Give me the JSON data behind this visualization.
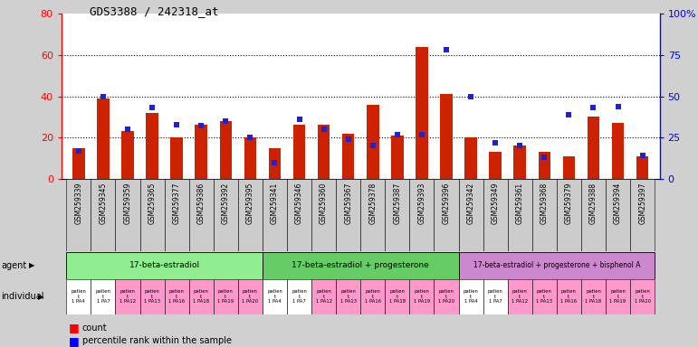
{
  "title": "GDS3388 / 242318_at",
  "gsm_ids": [
    "GSM259339",
    "GSM259345",
    "GSM259359",
    "GSM259365",
    "GSM259377",
    "GSM259386",
    "GSM259392",
    "GSM259395",
    "GSM259341",
    "GSM259346",
    "GSM259360",
    "GSM259367",
    "GSM259378",
    "GSM259387",
    "GSM259393",
    "GSM259396",
    "GSM259342",
    "GSM259349",
    "GSM259361",
    "GSM259368",
    "GSM259379",
    "GSM259388",
    "GSM259394",
    "GSM259397"
  ],
  "count_values": [
    15,
    39,
    23,
    32,
    20,
    26,
    28,
    20,
    15,
    26,
    26,
    22,
    36,
    21,
    64,
    41,
    20,
    13,
    16,
    13,
    11,
    30,
    27,
    11
  ],
  "percentile_values": [
    17,
    50,
    30,
    43,
    33,
    32,
    35,
    25,
    10,
    36,
    30,
    24,
    20,
    27,
    27,
    78,
    50,
    22,
    20,
    13,
    39,
    43,
    44,
    14
  ],
  "agents": [
    {
      "label": "17-beta-estradiol",
      "start": 0,
      "end": 8,
      "color": "#90EE90"
    },
    {
      "label": "17-beta-estradiol + progesterone",
      "start": 8,
      "end": 16,
      "color": "#66CC66"
    },
    {
      "label": "17-beta-estradiol + progesterone + bisphenol A",
      "start": 16,
      "end": 24,
      "color": "#CC88CC"
    }
  ],
  "ind_labels": [
    "patien\nt\n1 PA4",
    "patien\nt\n1 PA7",
    "patien\nt\n1 PA12",
    "patien\nt\n1 PA13",
    "patien\nt\n1 PA16",
    "patien\nt\n1 PA18",
    "patien\nt\n1 PA19",
    "patien\nt\n1 PA20",
    "patien\nt\n1 PA4",
    "patien\nt\n1 PA7",
    "patien\nt\n1 PA12",
    "patien\nt\n1 PA13",
    "patien\nt\n1 PA16",
    "patien\nt\n1 PA18",
    "patien\nt\n1 PA19",
    "patien\nt\n1 PA20",
    "patien\nt\n1 PA4",
    "patien\nt\n1 PA7",
    "patien\nt\n1 PA12",
    "patien\nt\n1 PA13",
    "patien\nt\n1 PA16",
    "patien\nt\n1 PA18",
    "patien\nt\n1 PA19",
    "patien\nt\n1 PA20"
  ],
  "ind_colors": [
    "#FFFFFF",
    "#FFFFFF",
    "#FF99CC",
    "#FF99CC",
    "#FF99CC",
    "#FF99CC",
    "#FF99CC",
    "#FF99CC",
    "#FFFFFF",
    "#FFFFFF",
    "#FF99CC",
    "#FF99CC",
    "#FF99CC",
    "#FF99CC",
    "#FF99CC",
    "#FF99CC",
    "#FFFFFF",
    "#FFFFFF",
    "#FF99CC",
    "#FF99CC",
    "#FF99CC",
    "#FF99CC",
    "#FF99CC",
    "#FF99CC"
  ],
  "left_ylim": [
    0,
    80
  ],
  "right_ylim": [
    0,
    100
  ],
  "left_yticks": [
    0,
    20,
    40,
    60,
    80
  ],
  "right_yticks": [
    0,
    25,
    50,
    75,
    100
  ],
  "bar_color": "#CC2200",
  "percentile_color": "#2222CC",
  "bg_color": "#D0D0D0",
  "plot_bg": "#FFFFFF",
  "bar_width": 0.5
}
